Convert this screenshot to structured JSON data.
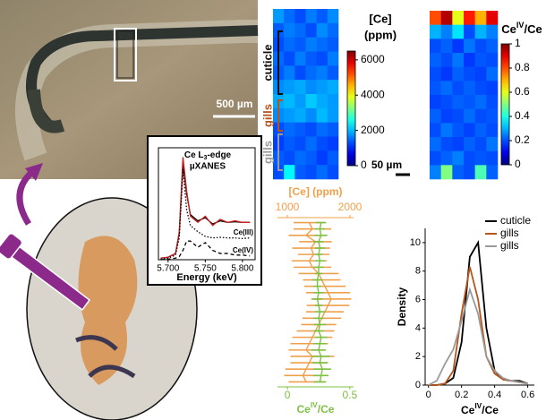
{
  "photo": {
    "scale_bar": "500 µm"
  },
  "chart_data": [
    {
      "type": "heatmap",
      "title": "[Ce]",
      "subtitle": "(ppm)",
      "colormap": "jet",
      "clim": [
        0,
        6500
      ],
      "cticks": [
        0,
        2000,
        4000,
        6000
      ],
      "region_labels": [
        {
          "text": "cuticle",
          "color": "#111111"
        },
        {
          "text": "gills",
          "color": "#b5541c"
        },
        {
          "text": "gills",
          "color": "#9a9a9a"
        }
      ],
      "scale_bar": "50 µm",
      "values": [
        [
          1800,
          1500,
          1300,
          1600,
          1400,
          1700
        ],
        [
          1400,
          1600,
          1500,
          1300,
          1700,
          1500
        ],
        [
          1300,
          1500,
          1400,
          1600,
          1500,
          1400
        ],
        [
          1500,
          1300,
          1600,
          1400,
          1300,
          1600
        ],
        [
          1400,
          1600,
          1300,
          1500,
          1600,
          1400
        ],
        [
          1700,
          1800,
          1900,
          1700,
          1800,
          1900
        ],
        [
          1900,
          2000,
          1800,
          2100,
          1900,
          1800
        ],
        [
          1700,
          1800,
          1900,
          1700,
          2000,
          1800
        ],
        [
          1300,
          1500,
          1400,
          1300,
          1500,
          1400
        ],
        [
          1200,
          1400,
          1300,
          1500,
          1300,
          1200
        ],
        [
          1400,
          1300,
          1500,
          1400,
          1200,
          1400
        ],
        [
          1300,
          2400,
          1400,
          1300,
          1500,
          1300
        ]
      ]
    },
    {
      "type": "heatmap",
      "title": {
        "base": "Ce",
        "sup": "IV",
        "rest": "/Ce"
      },
      "colormap": "jet",
      "clim": [
        0,
        1
      ],
      "cticks": [
        0,
        0.2,
        0.4,
        0.6,
        0.8,
        1
      ],
      "values": [
        [
          0.8,
          0.95,
          0.6,
          0.85,
          0.7,
          0.9
        ],
        [
          0.3,
          0.25,
          0.35,
          0.2,
          0.3,
          0.25
        ],
        [
          0.2,
          0.22,
          0.18,
          0.24,
          0.2,
          0.22
        ],
        [
          0.22,
          0.2,
          0.24,
          0.18,
          0.21,
          0.2
        ],
        [
          0.2,
          0.18,
          0.22,
          0.2,
          0.19,
          0.23
        ],
        [
          0.21,
          0.23,
          0.2,
          0.22,
          0.2,
          0.19
        ],
        [
          0.19,
          0.2,
          0.22,
          0.21,
          0.23,
          0.2
        ],
        [
          0.22,
          0.19,
          0.2,
          0.23,
          0.2,
          0.21
        ],
        [
          0.2,
          0.24,
          0.21,
          0.19,
          0.22,
          0.2
        ],
        [
          0.23,
          0.2,
          0.19,
          0.22,
          0.2,
          0.24
        ],
        [
          0.2,
          0.22,
          0.25,
          0.2,
          0.21,
          0.2
        ],
        [
          0.25,
          0.5,
          0.22,
          0.2,
          0.45,
          0.22
        ]
      ]
    },
    {
      "type": "line",
      "title": {
        "a": "Ce L",
        "sub": "3",
        "b": "-edge"
      },
      "subtitle": "µXANES",
      "xlabel": "Energy (keV)",
      "x": [
        5.69,
        5.7,
        5.71,
        5.715,
        5.72,
        5.725,
        5.73,
        5.74,
        5.75,
        5.76,
        5.77,
        5.78,
        5.79,
        5.8,
        5.81
      ],
      "xlim": [
        5.687,
        5.817
      ],
      "ylim": [
        0,
        3.6
      ],
      "xticks": [
        {
          "value": 5.7,
          "label": "5.700"
        },
        {
          "value": 5.75,
          "label": "5.750"
        },
        {
          "value": 5.8,
          "label": "5.800"
        }
      ],
      "series": [
        {
          "color": "#000000",
          "dash": "solid",
          "values": [
            0.05,
            0.08,
            0.2,
            0.85,
            3.1,
            2.1,
            1.45,
            1.25,
            1.35,
            1.15,
            1.25,
            1.2,
            1.22,
            1.2,
            1.2
          ]
        },
        {
          "color": "#cc1f1f",
          "dash": "solid",
          "values": [
            0.05,
            0.08,
            0.2,
            0.9,
            3.3,
            2.2,
            1.4,
            1.2,
            1.4,
            1.1,
            1.3,
            1.2,
            1.25,
            1.2,
            1.2
          ]
        },
        {
          "name": "Ce(III)",
          "color": "#000000",
          "dash": "dotted",
          "values": [
            0.02,
            0.05,
            0.15,
            0.7,
            2.9,
            1.6,
            1.1,
            0.9,
            0.75,
            0.7,
            0.72,
            0.7,
            0.7,
            0.68,
            0.7
          ]
        },
        {
          "name": "Ce(IV)",
          "color": "#000000",
          "dash": "dashed",
          "values": [
            0,
            0.02,
            0.05,
            0.1,
            0.3,
            0.6,
            0.6,
            0.4,
            0.55,
            0.3,
            0.2,
            0.2,
            0.15,
            0.15,
            0.12
          ]
        }
      ]
    },
    {
      "type": "profile",
      "x2label": "[Ce] (ppm)",
      "xlabel": {
        "base": "Ce",
        "sup": "IV",
        "rest": "/Ce"
      },
      "x2lim": [
        843,
        2057
      ],
      "x2ticks": [
        1000,
        2000
      ],
      "xlim": [
        -0.08,
        0.53
      ],
      "xticks": [
        0,
        0.5
      ],
      "series": [
        {
          "axis": "x2",
          "color": "#f0a04b",
          "values": [
            1350,
            1400,
            1300,
            1450,
            1380,
            1420,
            1350,
            1400,
            1500,
            1550,
            1600,
            1650,
            1700,
            1650,
            1600,
            1550,
            1500,
            1450,
            1400,
            1350,
            1300,
            1400,
            1350,
            1300,
            1250,
            1300
          ],
          "errors": [
            250,
            300,
            280,
            260,
            300,
            250,
            280,
            300,
            320,
            300,
            330,
            350,
            320,
            340,
            300,
            310,
            280,
            300,
            320,
            300,
            280,
            350,
            300,
            330,
            300,
            280
          ]
        },
        {
          "axis": "x",
          "color": "#7dc142",
          "values": [
            0.27,
            0.26,
            0.27,
            0.25,
            0.26,
            0.25,
            0.26,
            0.25,
            0.25,
            0.24,
            0.24,
            0.25,
            0.24,
            0.25,
            0.26,
            0.25,
            0.26,
            0.25,
            0.27,
            0.26,
            0.25,
            0.27,
            0.26,
            0.28,
            0.27,
            0.26
          ],
          "errors": [
            0.04,
            0.04,
            0.05,
            0.04,
            0.04,
            0.03,
            0.04,
            0.04,
            0.03,
            0.04,
            0.03,
            0.04,
            0.04,
            0.03,
            0.04,
            0.04,
            0.05,
            0.04,
            0.05,
            0.05,
            0.06,
            0.07,
            0.06,
            0.07,
            0.06,
            0.05
          ]
        }
      ]
    },
    {
      "type": "line",
      "ylabel": "Density",
      "xlabel": {
        "base": "Ce",
        "sup": "IV",
        "rest": "/Ce"
      },
      "x": [
        0,
        0.05,
        0.1,
        0.15,
        0.2,
        0.25,
        0.3,
        0.35,
        0.4,
        0.45,
        0.5,
        0.55,
        0.6
      ],
      "xlim": [
        -0.02,
        0.64
      ],
      "ylim": [
        0,
        11
      ],
      "xticks": [
        0,
        0.2,
        0.4,
        0.6
      ],
      "yticks": [
        0,
        2,
        4,
        6,
        8,
        10
      ],
      "legend": "upper right",
      "series": [
        {
          "name": "cuticle",
          "color": "#000000",
          "values": [
            0,
            0,
            0.1,
            0.5,
            3,
            9,
            10,
            4,
            1,
            0.4,
            0.3,
            0.3,
            0.1
          ]
        },
        {
          "name": "gills",
          "color": "#b5541c",
          "values": [
            0,
            0,
            0.1,
            1,
            5,
            8.3,
            6,
            2,
            0.8,
            0.4,
            0.3,
            0.2,
            0.1
          ]
        },
        {
          "name": "gills",
          "color": "#9a9a9a",
          "values": [
            0,
            0.3,
            1.5,
            2.5,
            4.5,
            6.7,
            5,
            2,
            1,
            0.5,
            0.3,
            0.2,
            0.1
          ]
        }
      ]
    }
  ]
}
